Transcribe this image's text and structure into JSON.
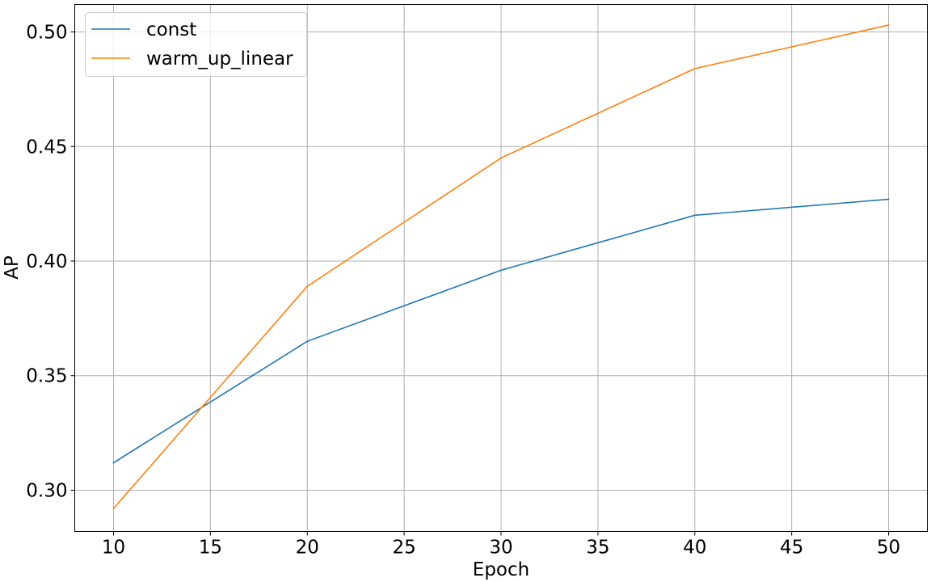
{
  "chart_data": {
    "type": "line",
    "title": "",
    "xlabel": "Epoch",
    "ylabel": "AP",
    "x": [
      10,
      20,
      30,
      40,
      50
    ],
    "xlim": [
      8,
      52
    ],
    "ylim": [
      0.282,
      0.512
    ],
    "xticks": [
      "10",
      "15",
      "20",
      "25",
      "30",
      "35",
      "40",
      "45",
      "50"
    ],
    "yticks": [
      "0.30",
      "0.35",
      "0.40",
      "0.45",
      "0.50"
    ],
    "grid": true,
    "legend_position": "upper-left",
    "series": [
      {
        "name": "const",
        "color": "#1f77b4",
        "values": [
          0.312,
          0.365,
          0.396,
          0.42,
          0.427
        ]
      },
      {
        "name": "warm_up_linear",
        "color": "#ff7f0e",
        "values": [
          0.292,
          0.389,
          0.445,
          0.484,
          0.503
        ]
      }
    ]
  }
}
